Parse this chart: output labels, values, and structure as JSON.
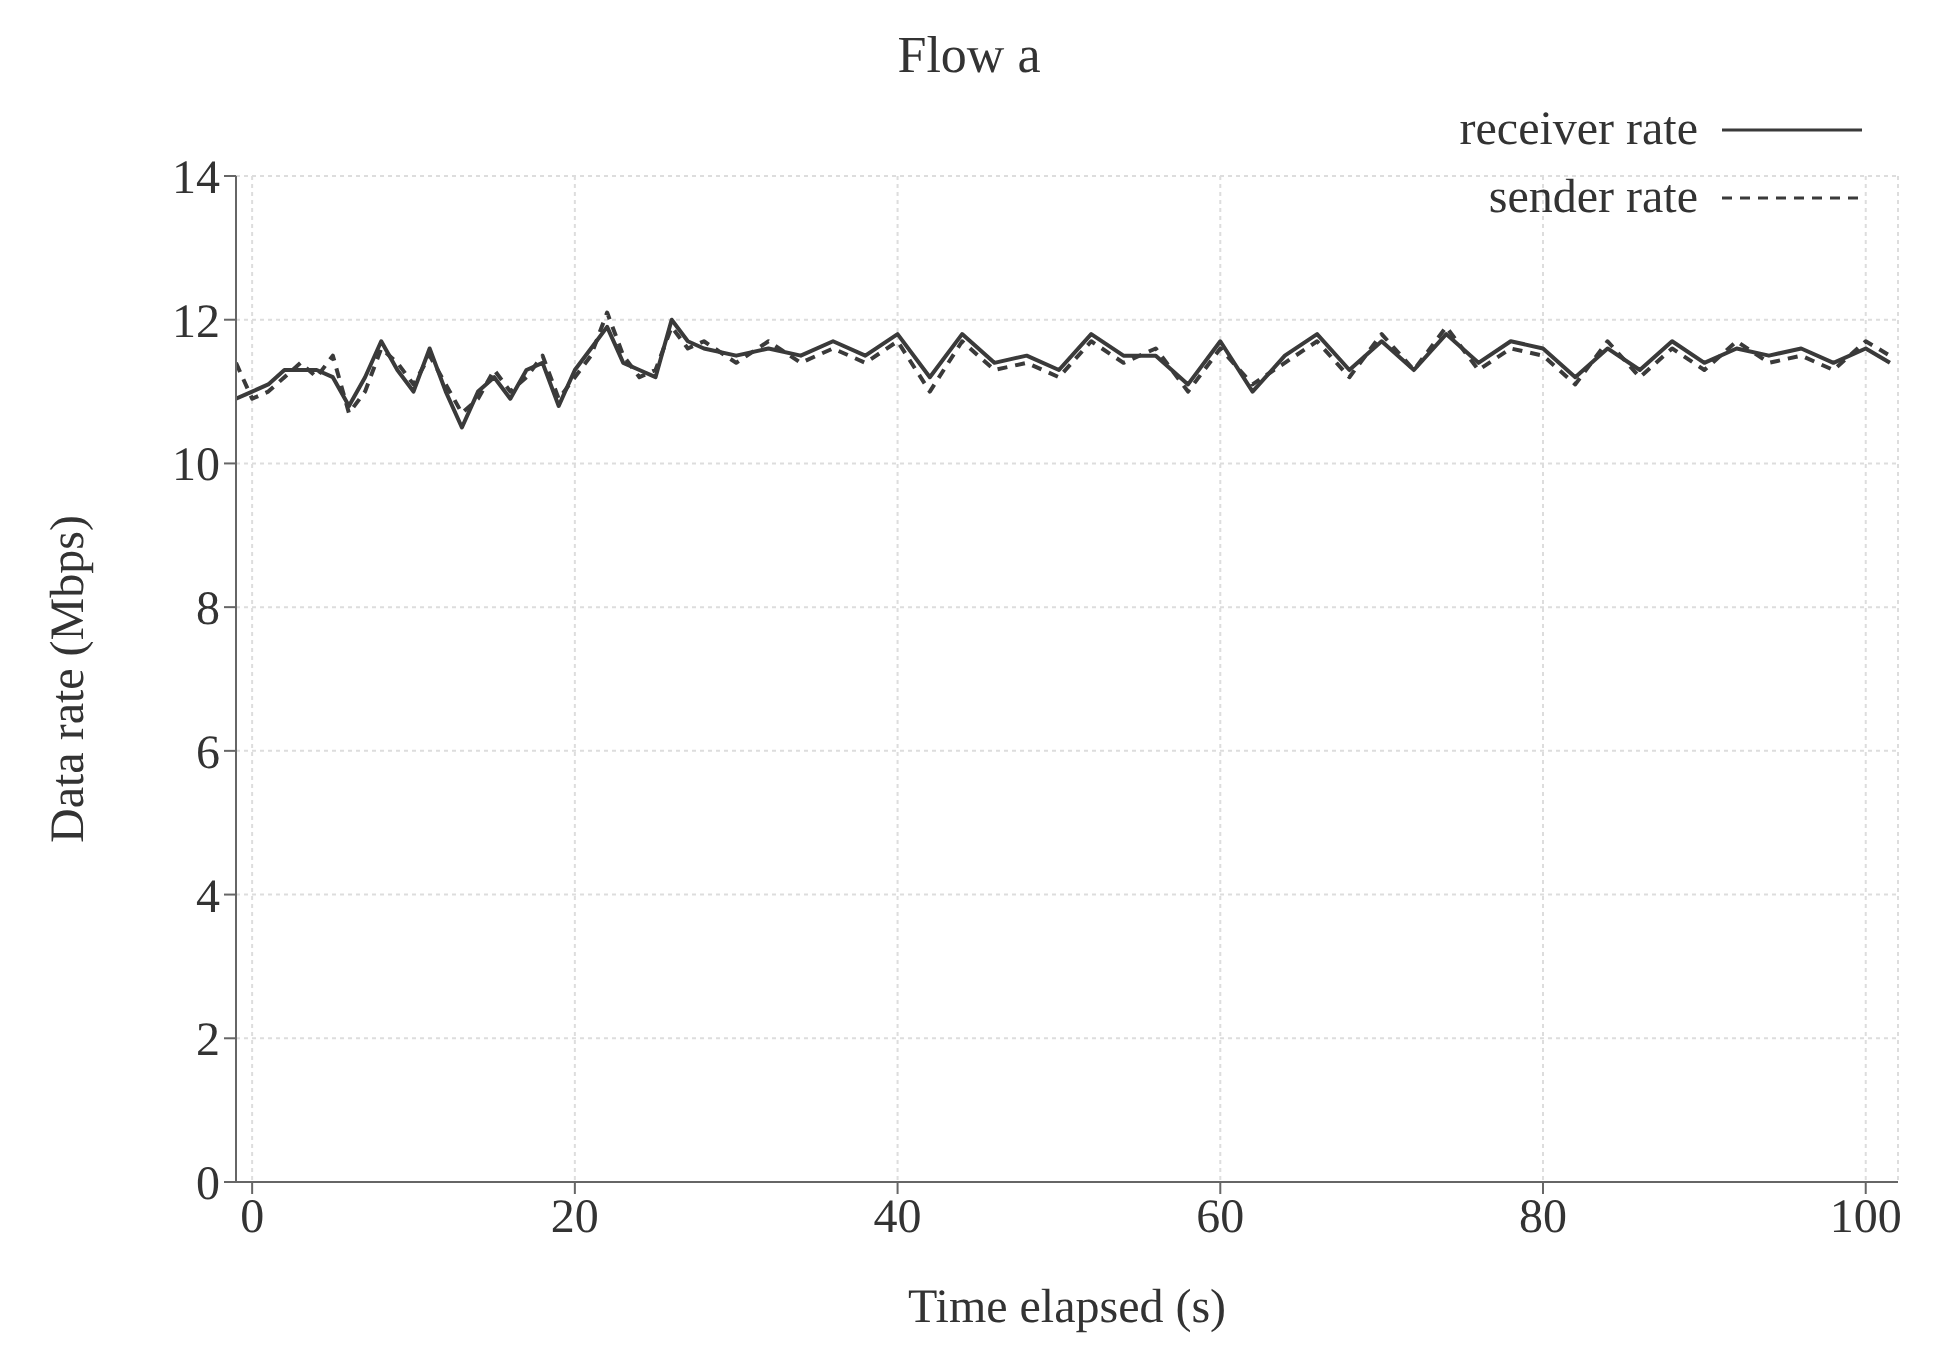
{
  "chart_data": {
    "type": "line",
    "title": "Flow a",
    "xlabel": "Time elapsed (s)",
    "ylabel": "Data rate (Mbps)",
    "x": [
      -1,
      0,
      1,
      2,
      3,
      4,
      5,
      6,
      7,
      8,
      9,
      10,
      11,
      12,
      13,
      14,
      15,
      16,
      17,
      18,
      19,
      20,
      21,
      22,
      23,
      24,
      25,
      26,
      27,
      28,
      30,
      32,
      34,
      36,
      38,
      40,
      42,
      44,
      46,
      48,
      50,
      52,
      54,
      56,
      58,
      60,
      62,
      64,
      66,
      68,
      70,
      72,
      74,
      76,
      78,
      80,
      82,
      84,
      86,
      88,
      90,
      92,
      94,
      96,
      98,
      100,
      101.5
    ],
    "series": [
      {
        "name": "receiver rate",
        "color": "#3a3a3a",
        "line_style": "solid",
        "values": [
          10.9,
          11.0,
          11.1,
          11.3,
          11.3,
          11.3,
          11.2,
          10.8,
          11.2,
          11.7,
          11.3,
          11.0,
          11.6,
          11.0,
          10.5,
          11.0,
          11.2,
          10.9,
          11.3,
          11.4,
          10.8,
          11.3,
          11.6,
          11.9,
          11.4,
          11.3,
          11.2,
          12.0,
          11.7,
          11.6,
          11.5,
          11.6,
          11.5,
          11.7,
          11.5,
          11.8,
          11.2,
          11.8,
          11.4,
          11.5,
          11.3,
          11.8,
          11.5,
          11.5,
          11.1,
          11.7,
          11.0,
          11.5,
          11.8,
          11.3,
          11.7,
          11.3,
          11.8,
          11.4,
          11.7,
          11.6,
          11.2,
          11.6,
          11.3,
          11.7,
          11.4,
          11.6,
          11.5,
          11.6,
          11.4,
          11.6,
          11.4
        ]
      },
      {
        "name": "sender rate",
        "color": "#3a3a3a",
        "line_style": "dashed",
        "values": [
          11.4,
          10.9,
          11.0,
          11.2,
          11.4,
          11.2,
          11.5,
          10.7,
          11.0,
          11.6,
          11.4,
          11.1,
          11.5,
          11.1,
          10.7,
          10.9,
          11.3,
          11.0,
          11.2,
          11.5,
          10.9,
          11.2,
          11.5,
          12.1,
          11.5,
          11.2,
          11.3,
          11.9,
          11.6,
          11.7,
          11.4,
          11.7,
          11.4,
          11.6,
          11.4,
          11.7,
          11.0,
          11.7,
          11.3,
          11.4,
          11.2,
          11.7,
          11.4,
          11.6,
          11.0,
          11.6,
          11.1,
          11.4,
          11.7,
          11.2,
          11.8,
          11.3,
          11.9,
          11.3,
          11.6,
          11.5,
          11.1,
          11.7,
          11.2,
          11.6,
          11.3,
          11.7,
          11.4,
          11.5,
          11.3,
          11.7,
          11.5
        ]
      }
    ],
    "xlim": [
      -1,
      102
    ],
    "xticks": [
      0,
      20,
      40,
      60,
      80,
      100
    ],
    "ylim": [
      0,
      14
    ],
    "yticks": [
      0,
      2,
      4,
      6,
      8,
      10,
      12,
      14
    ],
    "grid": true,
    "legend": "top right",
    "marker": "none"
  }
}
